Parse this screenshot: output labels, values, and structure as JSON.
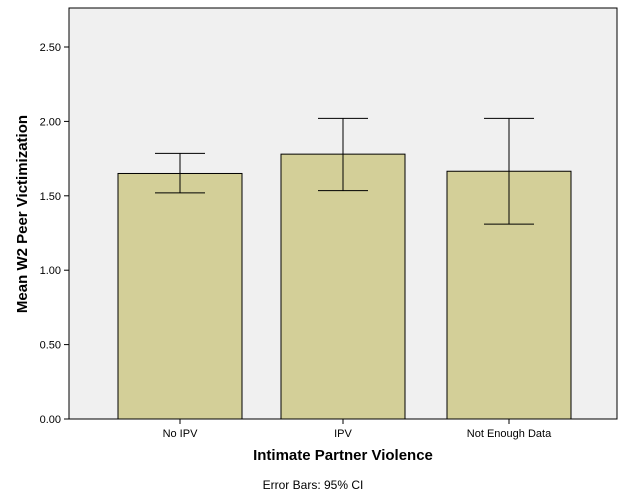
{
  "chart_data": {
    "type": "bar",
    "categories": [
      "No IPV",
      "IPV",
      "Not Enough Data"
    ],
    "values": [
      1.65,
      1.78,
      1.665
    ],
    "error_bars": {
      "lower": [
        1.52,
        1.535,
        1.31
      ],
      "upper": [
        1.785,
        2.02,
        2.02
      ]
    },
    "title": "",
    "xlabel": "Intimate Partner Violence",
    "ylabel": "Mean W2 Peer Victimization",
    "ylim": [
      0,
      2.5
    ],
    "yticks": [
      "0.00",
      "0.50",
      "1.00",
      "1.50",
      "2.00",
      "2.50"
    ],
    "footnote": "Error Bars: 95% CI",
    "grid": false,
    "colors": {
      "plot_background": "#f0f0f0",
      "bar_fill": "#d3cf98",
      "bar_stroke": "#000000"
    }
  }
}
